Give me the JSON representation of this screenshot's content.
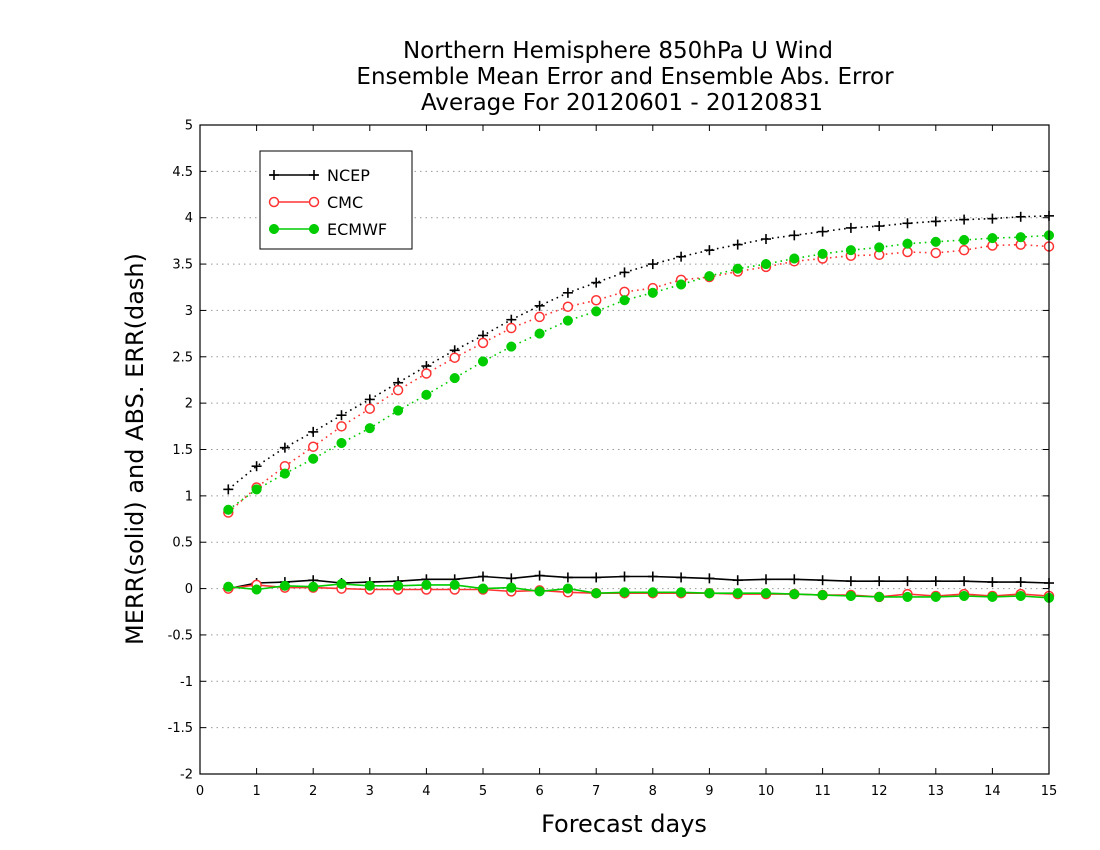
{
  "chart_data": {
    "type": "line",
    "title_lines": [
      "Northern Hemisphere 850hPa U Wind",
      "Ensemble Mean Error and Ensemble Abs. Error",
      "Average For 20120601 - 20120831"
    ],
    "xlabel": "Forecast days",
    "ylabel": "MERR(solid) and ABS. ERR(dash)",
    "xlim": [
      0,
      15
    ],
    "ylim": [
      -2,
      5
    ],
    "x_ticks": [
      "0",
      "1",
      "2",
      "3",
      "4",
      "5",
      "6",
      "7",
      "8",
      "9",
      "10",
      "11",
      "12",
      "13",
      "14",
      "15"
    ],
    "y_ticks": [
      "5",
      "4.5",
      "4",
      "3.5",
      "3",
      "2.5",
      "2",
      "1.5",
      "1",
      "0.5",
      "0",
      "-0.5",
      "-1",
      "-1.5",
      "-2"
    ],
    "grid": "horizontal dotted",
    "legend_position": "top-left",
    "x": [
      0.5,
      1,
      1.5,
      2,
      2.5,
      3,
      3.5,
      4,
      4.5,
      5,
      5.5,
      6,
      6.5,
      7,
      7.5,
      8,
      8.5,
      9,
      9.5,
      10,
      10.5,
      11,
      11.5,
      12,
      12.5,
      13,
      13.5,
      14,
      14.5,
      15
    ],
    "series": [
      {
        "name": "NCEP",
        "color": "#000000",
        "marker": "plus",
        "abs_err": [
          1.07,
          1.32,
          1.52,
          1.69,
          1.87,
          2.04,
          2.22,
          2.4,
          2.57,
          2.73,
          2.9,
          3.05,
          3.19,
          3.3,
          3.41,
          3.5,
          3.58,
          3.65,
          3.71,
          3.77,
          3.81,
          3.85,
          3.89,
          3.91,
          3.94,
          3.96,
          3.98,
          3.99,
          4.01,
          4.02
        ],
        "mean_err": [
          0.0,
          0.06,
          0.07,
          0.09,
          0.06,
          0.07,
          0.08,
          0.1,
          0.1,
          0.13,
          0.11,
          0.14,
          0.12,
          0.12,
          0.13,
          0.13,
          0.12,
          0.11,
          0.09,
          0.1,
          0.1,
          0.09,
          0.08,
          0.08,
          0.08,
          0.08,
          0.08,
          0.07,
          0.07,
          0.06
        ]
      },
      {
        "name": "CMC",
        "color": "#ff3333",
        "marker": "open-circle",
        "abs_err": [
          0.82,
          1.09,
          1.32,
          1.53,
          1.75,
          1.94,
          2.14,
          2.32,
          2.49,
          2.65,
          2.81,
          2.93,
          3.04,
          3.11,
          3.2,
          3.24,
          3.33,
          3.36,
          3.42,
          3.47,
          3.53,
          3.56,
          3.59,
          3.6,
          3.63,
          3.62,
          3.65,
          3.7,
          3.71,
          3.69
        ],
        "mean_err": [
          0.0,
          0.04,
          0.01,
          0.01,
          0.0,
          -0.01,
          -0.01,
          -0.01,
          -0.01,
          -0.01,
          -0.03,
          -0.02,
          -0.04,
          -0.05,
          -0.05,
          -0.05,
          -0.05,
          -0.05,
          -0.06,
          -0.06,
          -0.06,
          -0.07,
          -0.07,
          -0.09,
          -0.06,
          -0.08,
          -0.06,
          -0.08,
          -0.06,
          -0.08
        ]
      },
      {
        "name": "ECMWF",
        "color": "#00cc00",
        "marker": "filled-circle",
        "abs_err": [
          0.85,
          1.07,
          1.24,
          1.4,
          1.57,
          1.73,
          1.92,
          2.09,
          2.27,
          2.45,
          2.61,
          2.75,
          2.89,
          2.99,
          3.11,
          3.19,
          3.28,
          3.37,
          3.45,
          3.5,
          3.56,
          3.61,
          3.65,
          3.68,
          3.72,
          3.74,
          3.76,
          3.78,
          3.79,
          3.81
        ],
        "mean_err": [
          0.02,
          -0.01,
          0.03,
          0.02,
          0.05,
          0.03,
          0.03,
          0.04,
          0.04,
          0.0,
          0.01,
          -0.03,
          0.0,
          -0.05,
          -0.04,
          -0.04,
          -0.04,
          -0.05,
          -0.05,
          -0.05,
          -0.06,
          -0.07,
          -0.08,
          -0.09,
          -0.09,
          -0.09,
          -0.08,
          -0.09,
          -0.08,
          -0.1
        ]
      }
    ]
  }
}
